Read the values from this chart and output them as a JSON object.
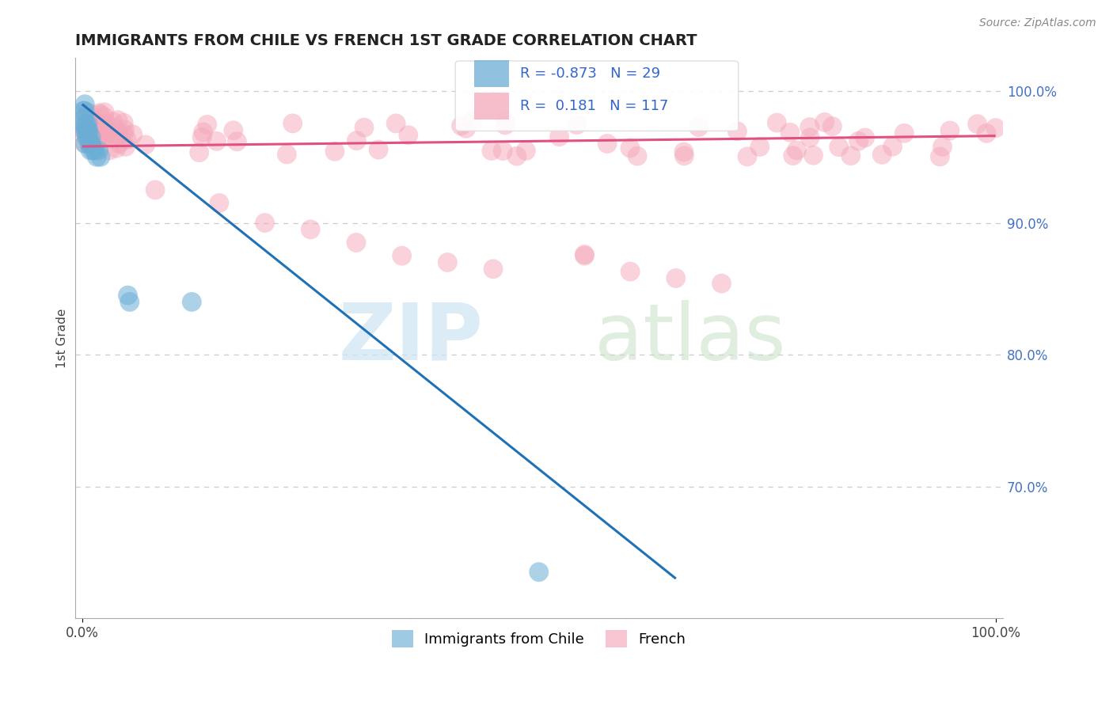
{
  "title": "IMMIGRANTS FROM CHILE VS FRENCH 1ST GRADE CORRELATION CHART",
  "source_text": "Source: ZipAtlas.com",
  "ylabel": "1st Grade",
  "legend_blue_label": "Immigrants from Chile",
  "legend_pink_label": "French",
  "blue_R": -0.873,
  "blue_N": 29,
  "pink_R": 0.181,
  "pink_N": 117,
  "blue_color": "#6baed6",
  "pink_color": "#f4a7b9",
  "blue_line_color": "#2171b5",
  "pink_line_color": "#e05080",
  "title_fontsize": 14,
  "tick_fontsize": 12,
  "ylabel_fontsize": 11
}
